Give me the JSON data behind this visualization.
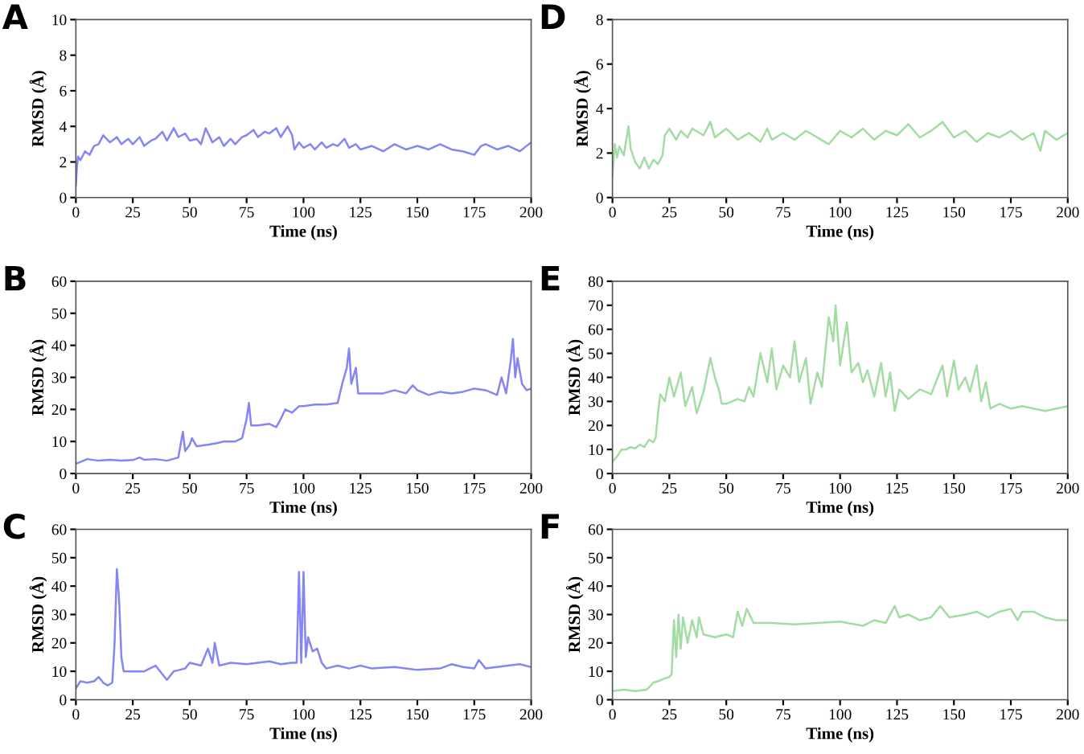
{
  "chart_data": [
    {
      "type": "line",
      "title": "A",
      "xlabel": "Time (ns)",
      "ylabel": "RMSD (Å)",
      "xlim": [
        0,
        200
      ],
      "xticks": [
        0,
        25,
        50,
        75,
        100,
        125,
        150,
        175,
        200
      ],
      "ylim": [
        0,
        10
      ],
      "yticks": [
        0,
        2,
        4,
        6,
        8,
        10
      ],
      "grid": false,
      "legend": false,
      "series": [
        {
          "color": "#8585f5",
          "x": [
            0,
            0.5,
            1,
            2,
            4,
            6,
            8,
            10,
            12,
            15,
            18,
            20,
            23,
            25,
            28,
            30,
            33,
            35,
            38,
            40,
            43,
            45,
            48,
            50,
            53,
            55,
            57,
            60,
            63,
            65,
            68,
            70,
            73,
            75,
            78,
            80,
            83,
            85,
            88,
            90,
            93,
            95,
            96,
            98,
            100,
            103,
            105,
            108,
            110,
            113,
            115,
            118,
            120,
            123,
            125,
            130,
            135,
            140,
            145,
            150,
            155,
            160,
            165,
            170,
            175,
            178,
            180,
            185,
            190,
            195,
            200
          ],
          "values": [
            0.7,
            1.8,
            2.3,
            2.1,
            2.6,
            2.4,
            2.9,
            3.0,
            3.5,
            3.1,
            3.4,
            3.0,
            3.3,
            3.0,
            3.4,
            2.9,
            3.2,
            3.3,
            3.7,
            3.2,
            3.9,
            3.4,
            3.6,
            3.2,
            3.3,
            3.0,
            3.9,
            3.1,
            3.4,
            2.9,
            3.3,
            3.0,
            3.4,
            3.5,
            3.8,
            3.4,
            3.7,
            3.6,
            3.9,
            3.4,
            4.0,
            3.5,
            2.7,
            3.1,
            2.8,
            3.0,
            2.7,
            3.1,
            2.8,
            3.0,
            2.9,
            3.3,
            2.8,
            3.0,
            2.7,
            2.9,
            2.6,
            3.0,
            2.7,
            2.9,
            2.7,
            3.0,
            2.7,
            2.6,
            2.4,
            2.9,
            3.0,
            2.7,
            2.9,
            2.6,
            3.1
          ]
        }
      ]
    },
    {
      "type": "line",
      "title": "D",
      "xlabel": "Time (ns)",
      "ylabel": "RMSD (Å)",
      "xlim": [
        0,
        200
      ],
      "xticks": [
        0,
        25,
        50,
        75,
        100,
        125,
        150,
        175,
        200
      ],
      "ylim": [
        0,
        8
      ],
      "yticks": [
        0,
        2,
        4,
        6,
        8
      ],
      "grid": false,
      "legend": false,
      "series": [
        {
          "color": "#a3dca3",
          "x": [
            0,
            1,
            2,
            3,
            5,
            7,
            8,
            10,
            12,
            14,
            16,
            18,
            20,
            22,
            23,
            25,
            28,
            30,
            33,
            35,
            40,
            43,
            45,
            50,
            55,
            60,
            65,
            68,
            70,
            75,
            80,
            85,
            90,
            95,
            100,
            105,
            110,
            115,
            120,
            125,
            130,
            135,
            140,
            145,
            150,
            155,
            160,
            165,
            170,
            175,
            180,
            185,
            188,
            190,
            195,
            200
          ],
          "values": [
            1.0,
            2.4,
            1.8,
            2.3,
            1.9,
            3.2,
            2.2,
            1.6,
            1.3,
            1.8,
            1.3,
            1.7,
            1.5,
            1.9,
            2.8,
            3.1,
            2.6,
            3.0,
            2.7,
            3.1,
            2.8,
            3.4,
            2.7,
            3.1,
            2.6,
            2.9,
            2.5,
            3.1,
            2.6,
            2.9,
            2.6,
            3.0,
            2.7,
            2.4,
            3.0,
            2.7,
            3.1,
            2.6,
            3.0,
            2.8,
            3.3,
            2.7,
            3.0,
            3.4,
            2.7,
            3.0,
            2.5,
            2.9,
            2.7,
            3.0,
            2.6,
            2.9,
            2.1,
            3.0,
            2.6,
            2.9
          ]
        }
      ]
    },
    {
      "type": "line",
      "title": "B",
      "xlabel": "Time (ns)",
      "ylabel": "RMSD (Å)",
      "xlim": [
        0,
        200
      ],
      "xticks": [
        0,
        25,
        50,
        75,
        100,
        125,
        150,
        175,
        200
      ],
      "ylim": [
        0,
        60
      ],
      "yticks": [
        0,
        10,
        20,
        30,
        40,
        50,
        60
      ],
      "grid": false,
      "legend": false,
      "series": [
        {
          "color": "#8585f5",
          "x": [
            0,
            5,
            10,
            15,
            20,
            25,
            28,
            30,
            35,
            40,
            45,
            47,
            48,
            50,
            51,
            53,
            58,
            62,
            65,
            70,
            73,
            75,
            76,
            77,
            80,
            85,
            88,
            90,
            92,
            95,
            98,
            100,
            105,
            110,
            115,
            117,
            119,
            120,
            121,
            123,
            124,
            130,
            135,
            140,
            145,
            148,
            150,
            155,
            160,
            165,
            170,
            175,
            180,
            185,
            187,
            189,
            191,
            192,
            193,
            194,
            196,
            198,
            200
          ],
          "values": [
            3,
            4.5,
            4,
            4.3,
            4,
            4.2,
            5,
            4.3,
            4.5,
            4,
            5,
            13,
            7,
            9,
            11,
            8.5,
            9,
            9.5,
            10,
            10,
            11,
            17,
            22,
            15,
            15,
            15.5,
            14.5,
            17,
            20,
            19,
            21,
            21,
            21.5,
            21.5,
            22,
            28,
            33,
            39,
            28,
            33,
            25,
            25,
            25,
            26,
            25,
            27.5,
            26,
            24.5,
            25.5,
            25,
            25.5,
            26.5,
            26,
            24.5,
            30,
            25,
            35,
            42,
            30,
            36,
            28,
            26,
            26.5
          ]
        }
      ]
    },
    {
      "type": "line",
      "title": "E",
      "xlabel": "Time (ns)",
      "ylabel": "RMSD (Å)",
      "xlim": [
        0,
        200
      ],
      "xticks": [
        0,
        25,
        50,
        75,
        100,
        125,
        150,
        175,
        200
      ],
      "ylim": [
        0,
        80
      ],
      "yticks": [
        0,
        10,
        20,
        30,
        40,
        50,
        60,
        70,
        80
      ],
      "grid": false,
      "legend": false,
      "series": [
        {
          "color": "#a3dca3",
          "x": [
            0,
            2,
            4,
            6,
            8,
            10,
            12,
            14,
            16,
            18,
            19,
            20,
            21,
            23,
            25,
            27,
            30,
            32,
            35,
            37,
            40,
            43,
            45,
            47,
            48,
            50,
            55,
            58,
            60,
            62,
            65,
            68,
            70,
            72,
            75,
            78,
            80,
            82,
            85,
            87,
            90,
            92,
            95,
            97,
            98,
            100,
            103,
            105,
            108,
            110,
            112,
            115,
            118,
            120,
            122,
            124,
            126,
            130,
            135,
            140,
            145,
            147,
            150,
            152,
            155,
            157,
            160,
            162,
            164,
            166,
            170,
            175,
            180,
            185,
            190,
            195,
            200
          ],
          "values": [
            5,
            7,
            10,
            10,
            11,
            10.5,
            12,
            11,
            14,
            13,
            15,
            25,
            33,
            30,
            40,
            32,
            42,
            28,
            36,
            25,
            34,
            48,
            40,
            34,
            29,
            29,
            31,
            30,
            36,
            32,
            50,
            38,
            52,
            35,
            45,
            40,
            55,
            38,
            48,
            29,
            42,
            36,
            65,
            55,
            70,
            45,
            63,
            42,
            46,
            38,
            43,
            32,
            46,
            32,
            42,
            26,
            35,
            31,
            35,
            33,
            45,
            32,
            47,
            35,
            40,
            34,
            45,
            30,
            38,
            27,
            29,
            27,
            28,
            27,
            26,
            27,
            28
          ]
        }
      ]
    },
    {
      "type": "line",
      "title": "C",
      "xlabel": "Time (ns)",
      "ylabel": "RMSD (Å)",
      "xlim": [
        0,
        200
      ],
      "xticks": [
        0,
        25,
        50,
        75,
        100,
        125,
        150,
        175,
        200
      ],
      "ylim": [
        0,
        60
      ],
      "yticks": [
        0,
        10,
        20,
        30,
        40,
        50,
        60
      ],
      "grid": false,
      "legend": false,
      "series": [
        {
          "color": "#8585f5",
          "x": [
            0,
            2,
            5,
            8,
            10,
            12,
            14,
            16,
            17,
            18,
            19,
            20,
            21,
            25,
            30,
            35,
            38,
            40,
            43,
            48,
            50,
            55,
            58,
            60,
            61,
            63,
            68,
            75,
            80,
            85,
            90,
            95,
            97,
            98,
            99,
            100,
            101,
            102,
            104,
            106,
            108,
            110,
            115,
            120,
            125,
            130,
            140,
            150,
            160,
            165,
            170,
            175,
            177,
            180,
            190,
            195,
            200
          ],
          "values": [
            4,
            6.5,
            6,
            6.5,
            8,
            6,
            5,
            6,
            20,
            46,
            35,
            15,
            10,
            10,
            10,
            12,
            9,
            7,
            10,
            11,
            13,
            12,
            18,
            13,
            20,
            12,
            13,
            12.5,
            13,
            13.5,
            12.5,
            13,
            13,
            45,
            13,
            45,
            15,
            22,
            17,
            18,
            13,
            11,
            12,
            11,
            12,
            11,
            11.5,
            10.5,
            11,
            12.5,
            11.5,
            11,
            14,
            11,
            12,
            12.5,
            11.5
          ]
        }
      ]
    },
    {
      "type": "line",
      "title": "F",
      "xlabel": "Time (ns)",
      "ylabel": "RMSD (Å)",
      "xlim": [
        0,
        200
      ],
      "xticks": [
        0,
        25,
        50,
        75,
        100,
        125,
        150,
        175,
        200
      ],
      "ylim": [
        0,
        60
      ],
      "yticks": [
        0,
        10,
        20,
        30,
        40,
        50,
        60
      ],
      "grid": false,
      "legend": false,
      "series": [
        {
          "color": "#a3dca3",
          "x": [
            0,
            5,
            10,
            15,
            18,
            20,
            23,
            25,
            26,
            27,
            28,
            29,
            30,
            31,
            33,
            35,
            37,
            38,
            40,
            45,
            50,
            53,
            55,
            57,
            59,
            62,
            70,
            80,
            90,
            100,
            110,
            115,
            120,
            124,
            126,
            130,
            135,
            140,
            144,
            148,
            155,
            160,
            165,
            170,
            175,
            178,
            180,
            185,
            190,
            195,
            200
          ],
          "values": [
            3,
            3.5,
            3,
            3.5,
            6,
            6.5,
            7.5,
            8,
            9,
            28,
            15,
            30,
            18,
            29,
            20,
            28,
            22,
            29,
            23,
            22,
            23,
            22,
            31,
            26,
            32,
            27,
            27,
            26.5,
            27,
            27.5,
            26,
            28,
            27,
            33,
            29,
            30,
            28,
            29,
            33,
            29,
            30,
            31,
            29,
            31,
            32,
            28,
            31,
            31,
            29,
            28,
            28
          ]
        }
      ]
    }
  ]
}
